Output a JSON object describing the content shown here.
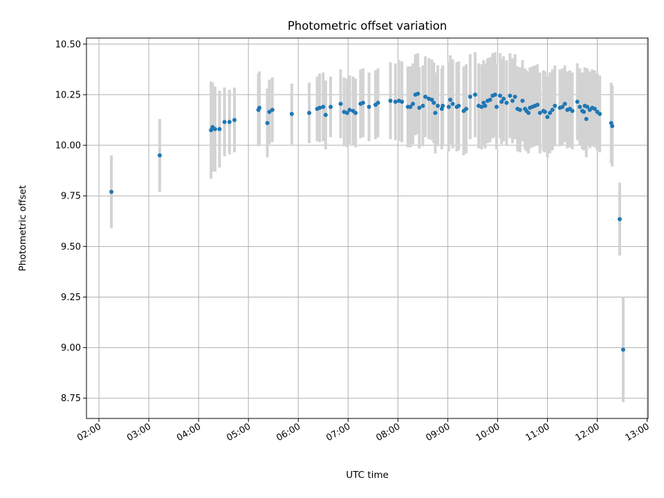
{
  "chart_data": {
    "type": "scatter",
    "title": "Photometric offset variation",
    "xlabel": "UTC time",
    "ylabel": "Photometric offset",
    "x_unit": "hours UTC",
    "xlim": [
      1.75,
      13.02
    ],
    "ylim": [
      8.65,
      10.53
    ],
    "x_ticks": [
      {
        "value": 2,
        "label": "02:00"
      },
      {
        "value": 3,
        "label": "03:00"
      },
      {
        "value": 4,
        "label": "04:00"
      },
      {
        "value": 5,
        "label": "05:00"
      },
      {
        "value": 6,
        "label": "06:00"
      },
      {
        "value": 7,
        "label": "07:00"
      },
      {
        "value": 8,
        "label": "08:00"
      },
      {
        "value": 9,
        "label": "09:00"
      },
      {
        "value": 10,
        "label": "10:00"
      },
      {
        "value": 11,
        "label": "11:00"
      },
      {
        "value": 12,
        "label": "12:00"
      },
      {
        "value": 13,
        "label": "13:00"
      }
    ],
    "y_ticks": [
      {
        "value": 8.75,
        "label": "8.75"
      },
      {
        "value": 9.0,
        "label": "9.00"
      },
      {
        "value": 9.25,
        "label": "9.25"
      },
      {
        "value": 9.5,
        "label": "9.50"
      },
      {
        "value": 9.75,
        "label": "9.75"
      },
      {
        "value": 10.0,
        "label": "10.00"
      },
      {
        "value": 10.25,
        "label": "10.25"
      },
      {
        "value": 10.5,
        "label": "10.50"
      }
    ],
    "grid": true,
    "marker_color": "#1f77b4",
    "errorbar_color": "#d3d3d3",
    "points": [
      [
        2.25,
        9.77,
        0.18
      ],
      [
        3.22,
        9.95,
        0.18
      ],
      [
        4.25,
        10.075,
        0.24
      ],
      [
        4.28,
        10.09,
        0.22
      ],
      [
        4.33,
        10.08,
        0.21
      ],
      [
        4.42,
        10.08,
        0.19
      ],
      [
        4.52,
        10.115,
        0.17
      ],
      [
        4.62,
        10.115,
        0.16
      ],
      [
        4.72,
        10.125,
        0.16
      ],
      [
        5.2,
        10.175,
        0.18
      ],
      [
        5.22,
        10.185,
        0.18
      ],
      [
        5.38,
        10.11,
        0.17
      ],
      [
        5.42,
        10.165,
        0.16
      ],
      [
        5.48,
        10.175,
        0.16
      ],
      [
        5.87,
        10.155,
        0.15
      ],
      [
        6.22,
        10.16,
        0.15
      ],
      [
        6.38,
        10.18,
        0.16
      ],
      [
        6.43,
        10.185,
        0.17
      ],
      [
        6.5,
        10.19,
        0.17
      ],
      [
        6.55,
        10.15,
        0.17
      ],
      [
        6.65,
        10.19,
        0.15
      ],
      [
        6.85,
        10.205,
        0.17
      ],
      [
        6.92,
        10.165,
        0.17
      ],
      [
        6.98,
        10.16,
        0.17
      ],
      [
        7.03,
        10.175,
        0.17
      ],
      [
        7.1,
        10.17,
        0.17
      ],
      [
        7.15,
        10.16,
        0.17
      ],
      [
        7.25,
        10.205,
        0.17
      ],
      [
        7.3,
        10.21,
        0.17
      ],
      [
        7.42,
        10.19,
        0.17
      ],
      [
        7.55,
        10.2,
        0.17
      ],
      [
        7.6,
        10.21,
        0.17
      ],
      [
        7.85,
        10.22,
        0.19
      ],
      [
        7.95,
        10.215,
        0.19
      ],
      [
        8.02,
        10.22,
        0.2
      ],
      [
        8.08,
        10.215,
        0.2
      ],
      [
        8.2,
        10.19,
        0.2
      ],
      [
        8.25,
        10.19,
        0.2
      ],
      [
        8.3,
        10.205,
        0.2
      ],
      [
        8.35,
        10.25,
        0.2
      ],
      [
        8.4,
        10.255,
        0.2
      ],
      [
        8.43,
        10.185,
        0.2
      ],
      [
        8.5,
        10.195,
        0.2
      ],
      [
        8.55,
        10.24,
        0.2
      ],
      [
        8.62,
        10.23,
        0.2
      ],
      [
        8.68,
        10.225,
        0.2
      ],
      [
        8.72,
        10.21,
        0.2
      ],
      [
        8.75,
        10.16,
        0.2
      ],
      [
        8.8,
        10.195,
        0.2
      ],
      [
        8.88,
        10.18,
        0.2
      ],
      [
        8.9,
        10.195,
        0.2
      ],
      [
        9.02,
        10.19,
        0.22
      ],
      [
        9.05,
        10.225,
        0.22
      ],
      [
        9.1,
        10.205,
        0.22
      ],
      [
        9.18,
        10.19,
        0.22
      ],
      [
        9.22,
        10.195,
        0.22
      ],
      [
        9.32,
        10.17,
        0.22
      ],
      [
        9.37,
        10.18,
        0.22
      ],
      [
        9.45,
        10.24,
        0.21
      ],
      [
        9.55,
        10.25,
        0.21
      ],
      [
        9.62,
        10.195,
        0.21
      ],
      [
        9.68,
        10.19,
        0.21
      ],
      [
        9.72,
        10.21,
        0.21
      ],
      [
        9.75,
        10.195,
        0.21
      ],
      [
        9.8,
        10.22,
        0.21
      ],
      [
        9.85,
        10.225,
        0.21
      ],
      [
        9.9,
        10.245,
        0.21
      ],
      [
        9.95,
        10.25,
        0.21
      ],
      [
        9.98,
        10.19,
        0.21
      ],
      [
        10.05,
        10.245,
        0.21
      ],
      [
        10.08,
        10.215,
        0.21
      ],
      [
        10.12,
        10.23,
        0.21
      ],
      [
        10.18,
        10.21,
        0.21
      ],
      [
        10.25,
        10.245,
        0.21
      ],
      [
        10.3,
        10.22,
        0.21
      ],
      [
        10.35,
        10.24,
        0.21
      ],
      [
        10.4,
        10.18,
        0.21
      ],
      [
        10.45,
        10.175,
        0.21
      ],
      [
        10.5,
        10.22,
        0.2
      ],
      [
        10.55,
        10.18,
        0.2
      ],
      [
        10.58,
        10.17,
        0.2
      ],
      [
        10.62,
        10.16,
        0.2
      ],
      [
        10.65,
        10.185,
        0.2
      ],
      [
        10.7,
        10.19,
        0.2
      ],
      [
        10.75,
        10.195,
        0.2
      ],
      [
        10.8,
        10.2,
        0.2
      ],
      [
        10.85,
        10.16,
        0.2
      ],
      [
        10.92,
        10.17,
        0.2
      ],
      [
        10.95,
        10.165,
        0.2
      ],
      [
        11.0,
        10.14,
        0.2
      ],
      [
        11.05,
        10.16,
        0.2
      ],
      [
        11.1,
        10.175,
        0.2
      ],
      [
        11.15,
        10.195,
        0.2
      ],
      [
        11.25,
        10.185,
        0.19
      ],
      [
        11.3,
        10.19,
        0.19
      ],
      [
        11.35,
        10.205,
        0.19
      ],
      [
        11.4,
        10.175,
        0.19
      ],
      [
        11.45,
        10.18,
        0.19
      ],
      [
        11.5,
        10.17,
        0.19
      ],
      [
        11.6,
        10.215,
        0.19
      ],
      [
        11.65,
        10.19,
        0.19
      ],
      [
        11.7,
        10.17,
        0.19
      ],
      [
        11.73,
        10.165,
        0.19
      ],
      [
        11.75,
        10.195,
        0.19
      ],
      [
        11.78,
        10.13,
        0.19
      ],
      [
        11.8,
        10.19,
        0.19
      ],
      [
        11.85,
        10.175,
        0.19
      ],
      [
        11.9,
        10.185,
        0.19
      ],
      [
        11.95,
        10.18,
        0.19
      ],
      [
        12.0,
        10.165,
        0.19
      ],
      [
        12.05,
        10.155,
        0.19
      ],
      [
        12.28,
        10.11,
        0.2
      ],
      [
        12.3,
        10.095,
        0.2
      ],
      [
        12.45,
        9.635,
        0.18
      ],
      [
        12.52,
        8.99,
        0.26
      ]
    ]
  }
}
